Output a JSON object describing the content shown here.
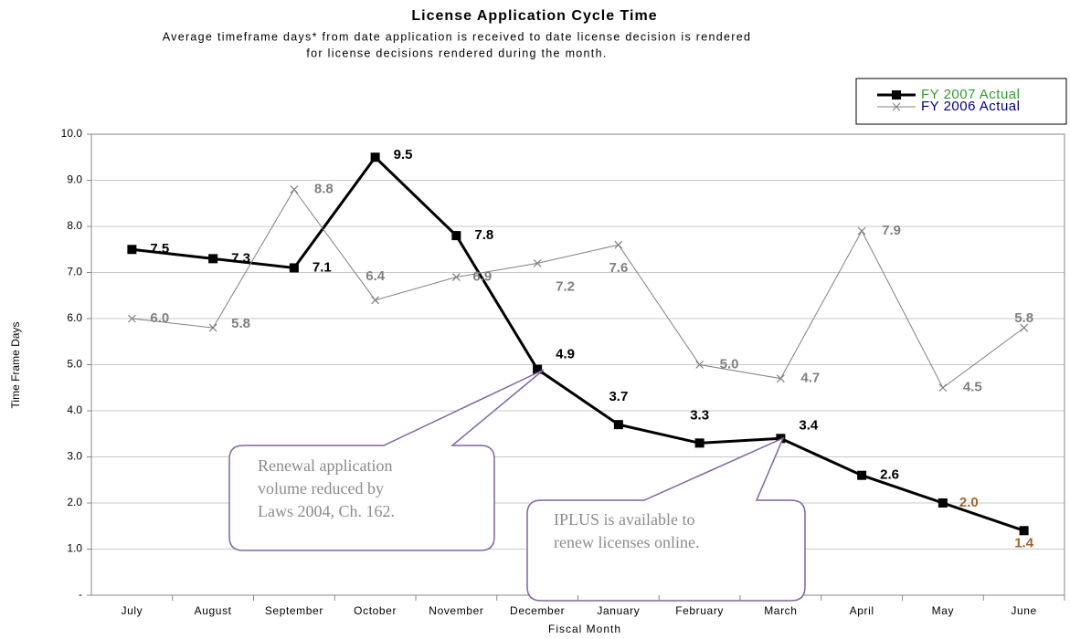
{
  "chart_data": {
    "type": "line",
    "title": "License Application Cycle Time",
    "subtitle": [
      "Average timeframe days* from date application is received to date license decision is rendered",
      "for license decisions rendered during the month."
    ],
    "x_label": "Fiscal Month",
    "y_label": "Time Frame Days",
    "categories": [
      "July",
      "August",
      "September",
      "October",
      "November",
      "December",
      "January",
      "February",
      "March",
      "April",
      "May",
      "June"
    ],
    "series": [
      {
        "name": "FY 2007 Actual",
        "color": "#000000",
        "legend_text_color": "#339933",
        "marker": "square",
        "values": [
          7.5,
          7.3,
          7.1,
          9.5,
          7.8,
          4.9,
          3.7,
          3.3,
          3.4,
          2.6,
          2.0,
          1.4
        ],
        "value_labels": [
          "7.5",
          "7.3",
          "7.1",
          "9.5",
          "7.8",
          "4.9",
          "3.7",
          "3.3",
          "3.4",
          "2.6",
          "2.0",
          "1.4"
        ],
        "value_label_colors": [
          "#000000",
          "#000000",
          "#000000",
          "#000000",
          "#000000",
          "#000000",
          "#000000",
          "#000000",
          "#000000",
          "#000000",
          "#a0662a",
          "#a0662a"
        ]
      },
      {
        "name": "FY 2006 Actual",
        "color": "#808080",
        "legend_text_color": "#000080",
        "marker": "x",
        "values": [
          6.0,
          5.8,
          8.8,
          6.4,
          6.9,
          7.2,
          7.6,
          5.0,
          4.7,
          7.9,
          4.5,
          5.8
        ],
        "value_labels": [
          "6.0",
          "5.8",
          "8.8",
          "6.4",
          "6.9",
          "7.2",
          "7.6",
          "5.0",
          "4.7",
          "7.9",
          "4.5",
          "5.8"
        ],
        "value_label_colors": [
          "#808080",
          "#808080",
          "#808080",
          "#808080",
          "#808080",
          "#808080",
          "#808080",
          "#808080",
          "#808080",
          "#808080",
          "#808080",
          "#808080"
        ]
      }
    ],
    "ylim": [
      0,
      10
    ],
    "yticks": [
      {
        "value": 0,
        "label": "-"
      },
      {
        "value": 1,
        "label": "1.0"
      },
      {
        "value": 2,
        "label": "2.0"
      },
      {
        "value": 3,
        "label": "3.0"
      },
      {
        "value": 4,
        "label": "4.0"
      },
      {
        "value": 5,
        "label": "5.0"
      },
      {
        "value": 6,
        "label": "6.0"
      },
      {
        "value": 7,
        "label": "7.0"
      },
      {
        "value": 8,
        "label": "8.0"
      },
      {
        "value": 9,
        "label": "9.0"
      },
      {
        "value": 10,
        "label": "10.0"
      }
    ],
    "grid": true,
    "legend": "top-right",
    "annotations": [
      {
        "lines": [
          "Renewal application",
          "volume reduced by",
          "Laws 2004, Ch. 162."
        ]
      },
      {
        "lines": [
          "IPLUS is available to",
          "renew licenses online."
        ]
      }
    ]
  }
}
